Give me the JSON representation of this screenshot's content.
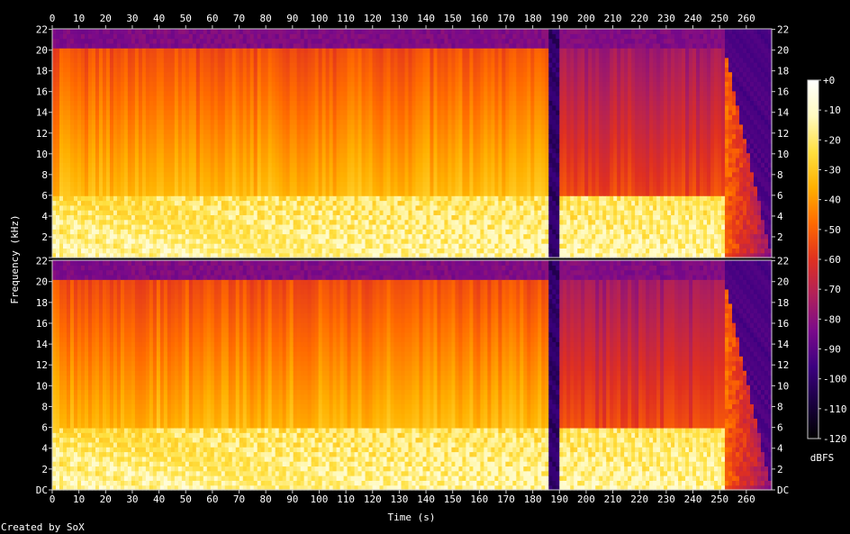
{
  "chart_data": {
    "type": "heatmap",
    "title": "",
    "xlabel": "Time (s)",
    "ylabel": "Frequency (kHz)",
    "x_ticks": [
      0,
      10,
      20,
      30,
      40,
      50,
      60,
      70,
      80,
      90,
      100,
      110,
      120,
      130,
      140,
      150,
      160,
      170,
      180,
      190,
      200,
      210,
      220,
      230,
      240,
      250,
      260
    ],
    "xlim": [
      0,
      269.5
    ],
    "y_ticks": [
      "DC",
      "2",
      "4",
      "6",
      "8",
      "10",
      "12",
      "14",
      "16",
      "18",
      "20",
      "22"
    ],
    "ylim_khz": [
      0,
      22.05
    ],
    "channels": 2,
    "colorbar": {
      "label": "dBFS",
      "ticks": [
        "+0",
        "-10",
        "-20",
        "-30",
        "-40",
        "-50",
        "-60",
        "-70",
        "-80",
        "-90",
        "-100",
        "-110",
        "-120"
      ],
      "range_db": [
        -120,
        0
      ],
      "colors": [
        "#000000",
        "#1a0040",
        "#3c0080",
        "#7a0a8a",
        "#b0205a",
        "#e03020",
        "#ff6a00",
        "#ffb000",
        "#ffe040",
        "#fffac0",
        "#ffffff"
      ]
    },
    "segments": [
      {
        "start": 0,
        "end": 186,
        "content": "dense music, energy to 20 kHz"
      },
      {
        "start": 186,
        "end": 190,
        "content": "near silence"
      },
      {
        "start": 190,
        "end": 252,
        "content": "music, lower upper-band energy"
      },
      {
        "start": 252,
        "end": 269.5,
        "content": "fade out"
      }
    ],
    "footer": "Created by SoX"
  }
}
